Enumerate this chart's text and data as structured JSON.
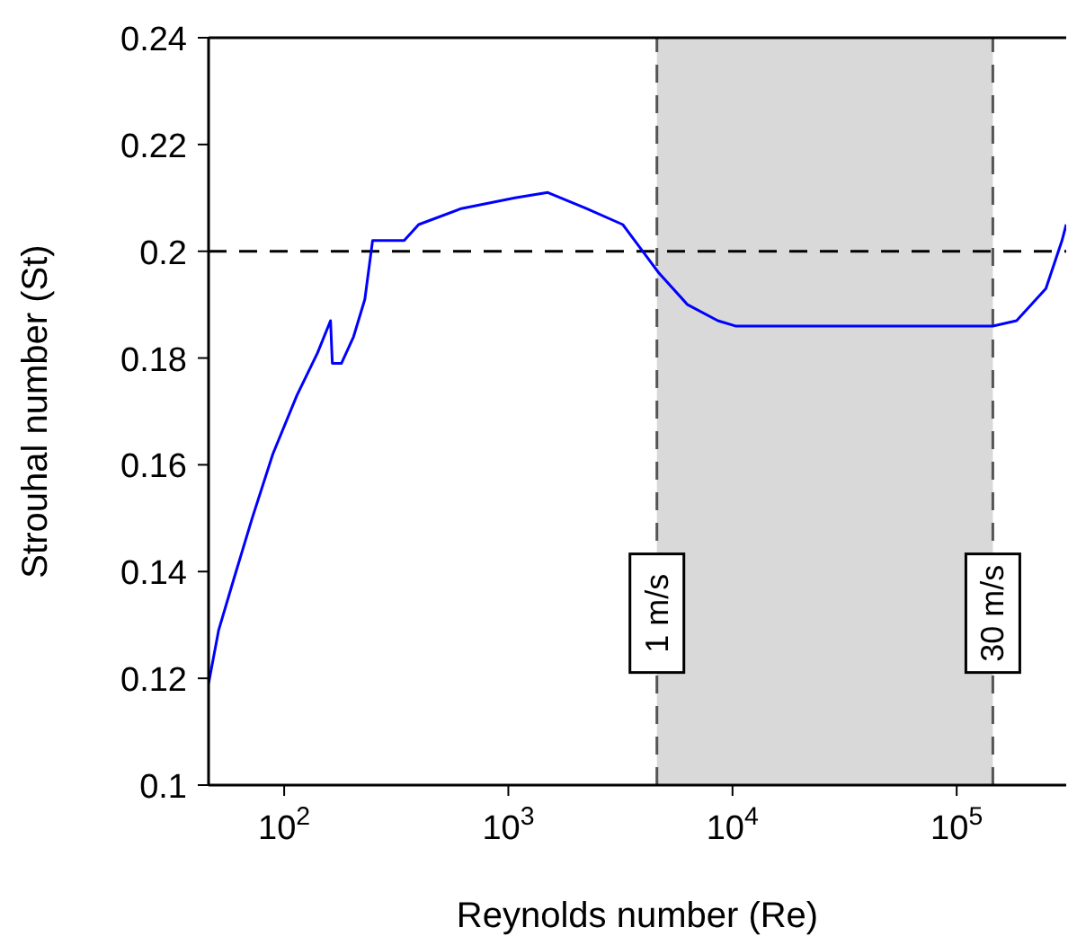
{
  "chart_data": {
    "type": "line",
    "xlabel": "Reynolds number (Re)",
    "ylabel": "Strouhal number (St)",
    "log": "x",
    "marker": "none",
    "line_style": "solid",
    "xlim": [
      46,
      308000
    ],
    "ylim": [
      0.1,
      0.24
    ],
    "xticks": [
      {
        "value": 100,
        "label": "10$^{2}$"
      },
      {
        "value": 1000,
        "label": "10$^{3}$"
      },
      {
        "value": 10000,
        "label": "10$^{4}$"
      },
      {
        "value": 100000,
        "label": "10$^{5}$"
      }
    ],
    "yticks": [
      0.1,
      0.12,
      0.14,
      0.16,
      0.18,
      0.2,
      0.22,
      0.24
    ],
    "x": [
      46,
      51,
      60,
      72,
      89,
      114,
      141,
      161,
      164,
      180,
      204,
      229,
      248,
      343,
      398,
      616,
      1070,
      1500,
      2230,
      3240,
      4140,
      4680,
      6300,
      8600,
      10300,
      145000,
      185000,
      250000,
      295000,
      308000
    ],
    "series": [
      {
        "color": "#0000ff",
        "values": [
          0.119,
          0.129,
          0.139,
          0.15,
          0.162,
          0.173,
          0.181,
          0.187,
          0.179,
          0.179,
          0.184,
          0.191,
          0.202,
          0.202,
          0.205,
          0.208,
          0.21,
          0.211,
          0.208,
          0.205,
          0.199,
          0.196,
          0.19,
          0.187,
          0.186,
          0.186,
          0.187,
          0.193,
          0.202,
          0.205
        ]
      }
    ],
    "bands": [
      {
        "axis": "x",
        "from": 4600,
        "to": 145000,
        "color": "#d9d9d9"
      }
    ],
    "ref_lines": [
      {
        "axis": "y",
        "value": 0.2,
        "color": "#000000",
        "line_style": "dashed"
      },
      {
        "axis": "x",
        "value": 4600,
        "label": "1 m/s",
        "color": "#555555",
        "line_style": "dashed"
      },
      {
        "axis": "x",
        "value": 145000,
        "label": "30 m/s",
        "color": "#555555",
        "line_style": "dashed"
      }
    ]
  }
}
